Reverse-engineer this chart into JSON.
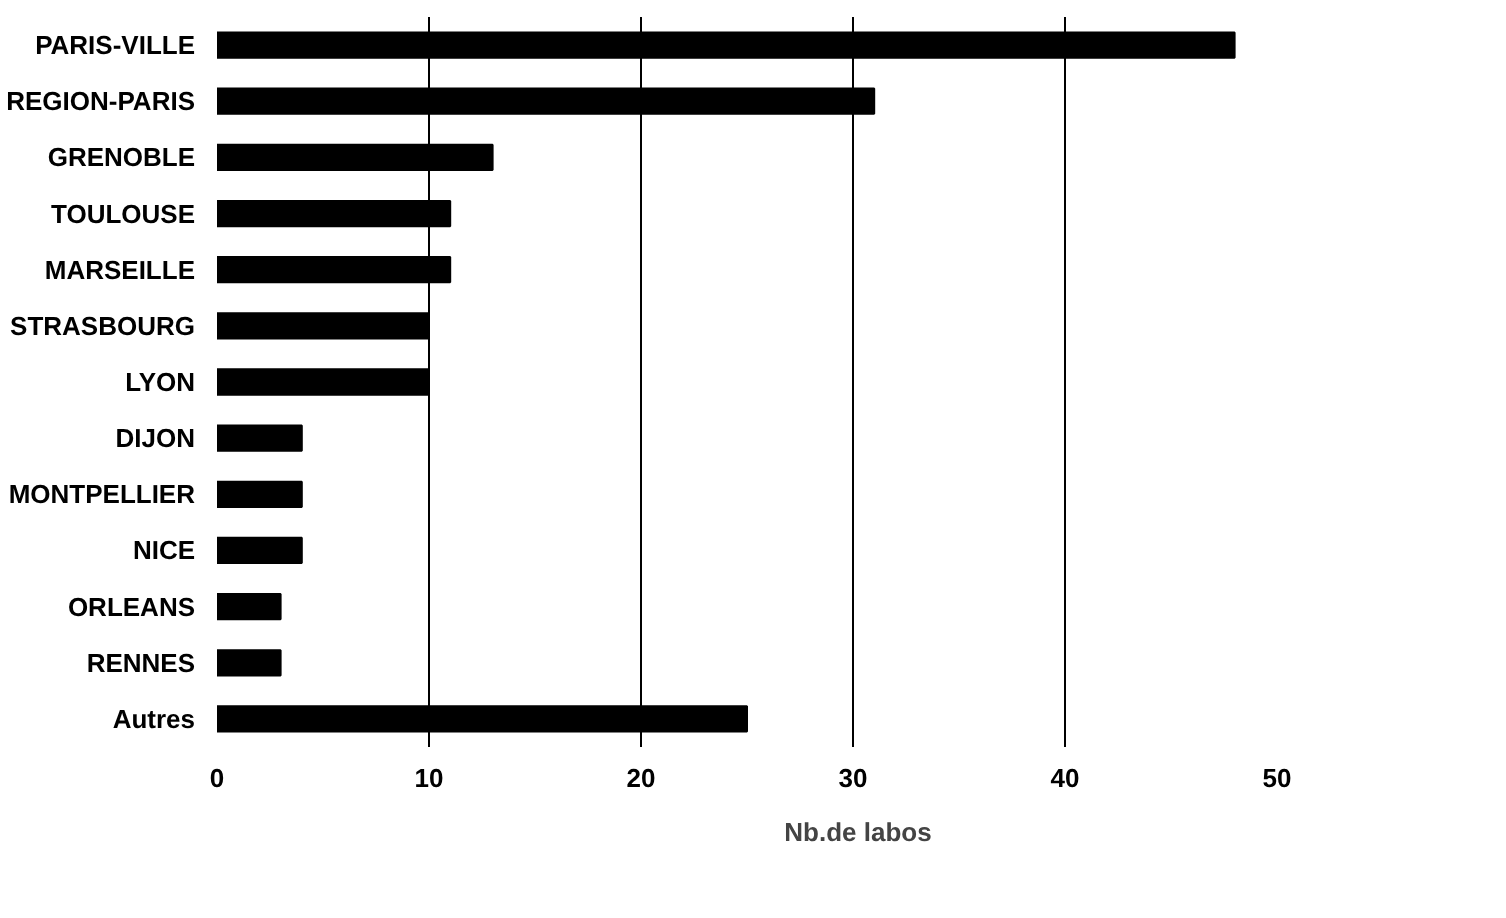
{
  "chart_data": {
    "type": "bar",
    "orientation": "horizontal",
    "categories": [
      "PARIS-VILLE",
      "REGION-PARIS",
      "GRENOBLE",
      "TOULOUSE",
      "MARSEILLE",
      "STRASBOURG",
      "LYON",
      "DIJON",
      "MONTPELLIER",
      "NICE",
      "ORLEANS",
      "RENNES",
      "Autres"
    ],
    "series": [
      {
        "name": "Nb.de labos",
        "color": "#000000",
        "values": [
          48,
          31,
          13,
          11,
          11,
          10,
          10,
          4,
          4,
          4,
          3,
          3,
          25
        ]
      }
    ],
    "xlim": [
      0,
      50
    ],
    "xticks": [
      0,
      10,
      20,
      30,
      40,
      50
    ],
    "grid": "x",
    "legend": "bottom"
  }
}
